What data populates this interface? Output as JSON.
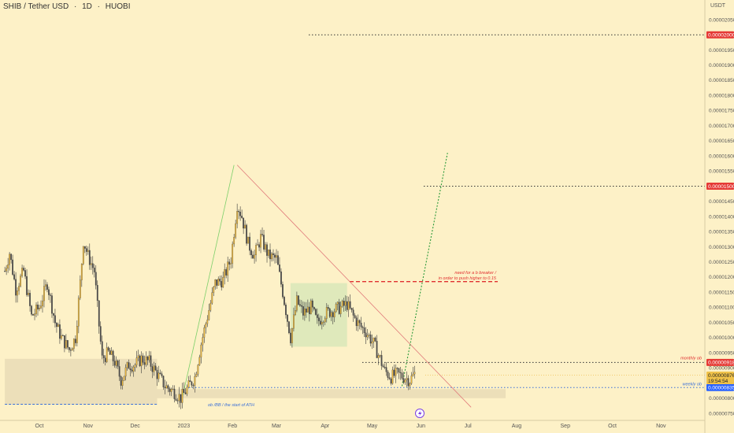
{
  "header": {
    "symbol": "SHIB / Tether USD",
    "interval": "1D",
    "exchange": "HUOBI",
    "currency": "USDT"
  },
  "colors": {
    "background": "#fdf1c7",
    "candle_up": "#e8b43a",
    "candle_down": "#4a4a4a",
    "target_line": "#333333",
    "red_line": "#e03030",
    "blue_line": "#3a6fd8",
    "green_line": "#2a9a3a",
    "zone_green": "#d9e8b8",
    "zone_tan": "#e9dcb6",
    "badge_red": "#e53935",
    "badge_blue": "#2962ff"
  },
  "chart_data": {
    "type": "candlestick",
    "y_unit": "USDT",
    "ylim": [
      7.4e-06,
      2.06e-05
    ],
    "x_range": [
      "2022-09-09",
      "2023-11-30"
    ],
    "y_ticks": [
      "0.00002050",
      "0.00002000",
      "0.00001950",
      "0.00001900",
      "0.00001850",
      "0.00001800",
      "0.00001750",
      "0.00001700",
      "0.00001650",
      "0.00001600",
      "0.00001550",
      "0.00001500",
      "0.00001450",
      "0.00001400",
      "0.00001350",
      "0.00001300",
      "0.00001250",
      "0.00001200",
      "0.00001150",
      "0.00001100",
      "0.00001050",
      "0.00001000",
      "0.00000950",
      "0.00000900",
      "0.00000850",
      "0.00000800",
      "0.00000750"
    ],
    "x_ticks": [
      {
        "label": "Oct",
        "date": "2022-10-01"
      },
      {
        "label": "Nov",
        "date": "2022-11-01"
      },
      {
        "label": "Dec",
        "date": "2022-12-01"
      },
      {
        "label": "2023",
        "date": "2023-01-01"
      },
      {
        "label": "Feb",
        "date": "2023-02-01"
      },
      {
        "label": "Mar",
        "date": "2023-03-01"
      },
      {
        "label": "Apr",
        "date": "2023-04-01"
      },
      {
        "label": "May",
        "date": "2023-05-01"
      },
      {
        "label": "Jun",
        "date": "2023-06-01"
      },
      {
        "label": "Jul",
        "date": "2023-07-01"
      },
      {
        "label": "Aug",
        "date": "2023-08-01"
      },
      {
        "label": "Sep",
        "date": "2023-09-01"
      },
      {
        "label": "Oct",
        "date": "2023-10-01"
      },
      {
        "label": "Nov",
        "date": "2023-11-01"
      }
    ],
    "price_path": [
      [
        "2022-09-09",
        1.22e-05
      ],
      [
        "2022-09-12",
        1.28e-05
      ],
      [
        "2022-09-16",
        1.16e-05
      ],
      [
        "2022-09-21",
        1.22e-05
      ],
      [
        "2022-09-26",
        1.07e-05
      ],
      [
        "2022-10-01",
        1.1e-05
      ],
      [
        "2022-10-06",
        1.18e-05
      ],
      [
        "2022-10-11",
        1.05e-05
      ],
      [
        "2022-10-15",
        1e-05
      ],
      [
        "2022-10-20",
        9.6e-06
      ],
      [
        "2022-10-24",
        1e-05
      ],
      [
        "2022-10-27",
        1.18e-05
      ],
      [
        "2022-10-29",
        1.32e-05
      ],
      [
        "2022-11-01",
        1.27e-05
      ],
      [
        "2022-11-05",
        1.22e-05
      ],
      [
        "2022-11-08",
        1.04e-05
      ],
      [
        "2022-11-10",
        9.3e-06
      ],
      [
        "2022-11-14",
        9.5e-06
      ],
      [
        "2022-11-18",
        9.2e-06
      ],
      [
        "2022-11-22",
        8.6e-06
      ],
      [
        "2022-11-27",
        9.1e-06
      ],
      [
        "2022-12-01",
        9.1e-06
      ],
      [
        "2022-12-05",
        9.3e-06
      ],
      [
        "2022-12-10",
        9.2e-06
      ],
      [
        "2022-12-15",
        8.8e-06
      ],
      [
        "2022-12-20",
        8.4e-06
      ],
      [
        "2022-12-26",
        8.2e-06
      ],
      [
        "2022-12-30",
        8e-06
      ],
      [
        "2023-01-03",
        8.3e-06
      ],
      [
        "2023-01-08",
        8.7e-06
      ],
      [
        "2023-01-12",
        9.8e-06
      ],
      [
        "2023-01-16",
        1.07e-05
      ],
      [
        "2023-01-21",
        1.18e-05
      ],
      [
        "2023-01-26",
        1.19e-05
      ],
      [
        "2023-01-31",
        1.26e-05
      ],
      [
        "2023-02-04",
        1.44e-05
      ],
      [
        "2023-02-07",
        1.4e-05
      ],
      [
        "2023-02-11",
        1.31e-05
      ],
      [
        "2023-02-15",
        1.27e-05
      ],
      [
        "2023-02-19",
        1.33e-05
      ],
      [
        "2023-02-24",
        1.27e-05
      ],
      [
        "2023-03-01",
        1.26e-05
      ],
      [
        "2023-03-05",
        1.15e-05
      ],
      [
        "2023-03-10",
        1e-05
      ],
      [
        "2023-03-14",
        1.12e-05
      ],
      [
        "2023-03-18",
        1.08e-05
      ],
      [
        "2023-03-23",
        1.1e-05
      ],
      [
        "2023-03-27",
        1.05e-05
      ],
      [
        "2023-04-01",
        1.08e-05
      ],
      [
        "2023-04-06",
        1.09e-05
      ],
      [
        "2023-04-11",
        1.1e-05
      ],
      [
        "2023-04-15",
        1.11e-05
      ],
      [
        "2023-04-19",
        1.07e-05
      ],
      [
        "2023-04-23",
        1.04e-05
      ],
      [
        "2023-04-27",
        1.02e-05
      ],
      [
        "2023-05-02",
        9.8e-06
      ],
      [
        "2023-05-06",
        9.3e-06
      ],
      [
        "2023-05-09",
        8.9e-06
      ],
      [
        "2023-05-13",
        8.7e-06
      ],
      [
        "2023-05-17",
        8.8e-06
      ],
      [
        "2023-05-21",
        8.7e-06
      ],
      [
        "2023-05-25",
        8.6e-06
      ],
      [
        "2023-05-28",
        8.8e-06
      ]
    ],
    "horizontal_levels": [
      {
        "price": 2e-05,
        "label": "0.00002000",
        "style": "dotted",
        "color_key": "target_line",
        "badge": "red"
      },
      {
        "price": 1.5e-05,
        "label": "0.00001500",
        "style": "dotted",
        "color_key": "target_line",
        "badge": "red"
      },
      {
        "price": 9.18e-06,
        "label": "0.00000918",
        "style": "dotted",
        "color_key": "target_line",
        "badge": "red",
        "annotation": "monthly ob"
      },
      {
        "price": 8.35e-06,
        "label": "0.00000835",
        "style": "dotted",
        "color_key": "blue_line",
        "badge": "blue",
        "annotation": "weekly ob"
      },
      {
        "price": 1.185e-05,
        "style": "dashed",
        "color_key": "red_line",
        "annotation": [
          "need for a b breaker /",
          "in order to push higher to 0.15"
        ]
      }
    ],
    "last_price": {
      "value": "0.00000876",
      "countdown": "19:54:54"
    },
    "annotations": {
      "ob_ath": "ob /BB / the start of ATH",
      "monthly_ob": "monthly ob",
      "weekly_ob": "weekly ob",
      "breaker_line1": "need for a b breaker /",
      "breaker_line2": "in order to push higher to 0.15"
    },
    "trendline_descending": [
      [
        "2023-02-04",
        1.57e-05
      ],
      [
        "2023-07-03",
        7.7e-06
      ]
    ],
    "trendline_ascending": [
      [
        "2022-12-31",
        8e-06
      ],
      [
        "2023-02-02",
        1.57e-05
      ]
    ],
    "projection_line": [
      [
        "2023-05-20",
        8.4e-06
      ],
      [
        "2023-06-18",
        1.61e-05
      ]
    ],
    "zones": [
      {
        "name": "consolidation-box",
        "from": "2023-03-10",
        "to": "2023-04-15",
        "low": 9.7e-06,
        "high": 1.18e-05,
        "color_key": "zone_green"
      },
      {
        "name": "demand-zone-left",
        "from": "2022-09-09",
        "to": "2022-12-15",
        "low": 7.8e-06,
        "high": 9.3e-06,
        "color_key": "zone_tan"
      },
      {
        "name": "weekly-ob-zone",
        "from": "2022-12-15",
        "to": "2023-07-25",
        "low": 8e-06,
        "high": 8.3e-06,
        "color_key": "zone_tan"
      }
    ],
    "ath_line": {
      "from": "2022-09-09",
      "to": "2022-12-15",
      "price": 7.8e-06
    }
  }
}
